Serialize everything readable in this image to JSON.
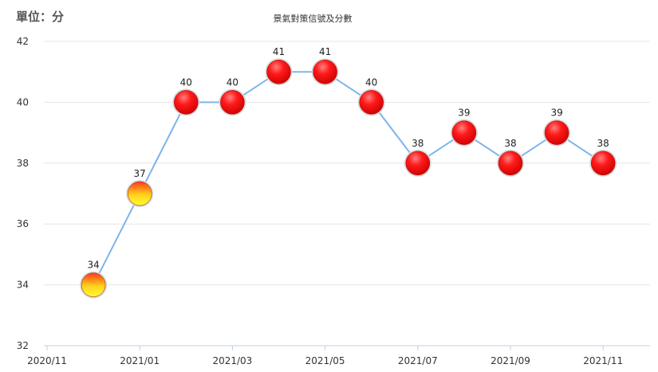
{
  "unit_label": "單位：分",
  "chart_data": {
    "type": "line",
    "title": "景氣對策信號及分數",
    "unit": "單位：分",
    "x": [
      "2020/12",
      "2021/01",
      "2021/02",
      "2021/03",
      "2021/04",
      "2021/05",
      "2021/06",
      "2021/07",
      "2021/08",
      "2021/09",
      "2021/10",
      "2021/11"
    ],
    "series": [
      {
        "values": [
          34,
          37,
          40,
          40,
          41,
          41,
          40,
          38,
          39,
          38,
          39,
          38
        ]
      }
    ],
    "signal_colors": [
      "yellow-red",
      "yellow-red",
      "red",
      "red",
      "red",
      "red",
      "red",
      "red",
      "red",
      "red",
      "red",
      "red"
    ],
    "x_ticks": [
      "2020/11",
      "2021/01",
      "2021/03",
      "2021/05",
      "2021/07",
      "2021/09",
      "2021/11"
    ],
    "y_ticks": [
      32,
      34,
      36,
      38,
      40,
      42
    ],
    "ylim": [
      32,
      42
    ],
    "grid": true,
    "line_color": "#7cb5ec"
  }
}
